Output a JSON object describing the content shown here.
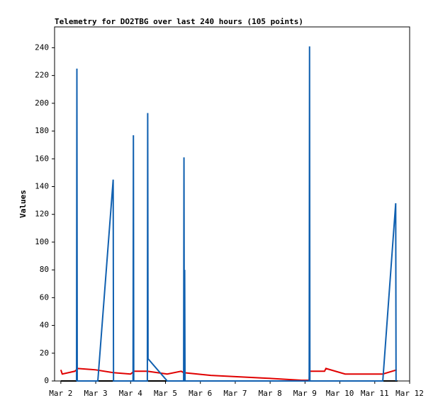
{
  "chart_data": {
    "type": "line",
    "title": "Telemetry for DO2TBG over last 240 hours (105 points)",
    "y_label": "Values",
    "xlim": [
      1.82,
      12
    ],
    "ylim": [
      0,
      255
    ],
    "xticks": [
      {
        "value": 2,
        "label": "Mar 2"
      },
      {
        "value": 3,
        "label": "Mar 3"
      },
      {
        "value": 4,
        "label": "Mar 4"
      },
      {
        "value": 5,
        "label": "Mar 5"
      },
      {
        "value": 6,
        "label": "Mar 6"
      },
      {
        "value": 7,
        "label": "Mar 7"
      },
      {
        "value": 8,
        "label": "Mar 8"
      },
      {
        "value": 9,
        "label": "Mar 9"
      },
      {
        "value": 10,
        "label": "Mar 10"
      },
      {
        "value": 11,
        "label": "Mar 11"
      },
      {
        "value": 12,
        "label": "Mar 12"
      }
    ],
    "yticks": [
      0,
      20,
      40,
      60,
      80,
      100,
      120,
      140,
      160,
      180,
      200,
      220,
      240
    ],
    "series": [
      {
        "color": "#000000",
        "x": [
          2.0,
          11.65
        ],
        "values": [
          0,
          0
        ]
      },
      {
        "color": "#e00000",
        "x": [
          2.0,
          2.04,
          2.4,
          2.49,
          3.0,
          3.5,
          4.0,
          4.1,
          4.48,
          5.05,
          5.45,
          5.52,
          6.3,
          7.9,
          8.9,
          9.12,
          9.13,
          9.56,
          9.6,
          10.15,
          11.23,
          11.63
        ],
        "values": [
          8,
          5,
          7,
          9,
          8,
          6,
          5,
          7,
          7,
          5,
          7,
          6,
          4,
          2,
          0.5,
          0.5,
          7,
          7,
          9,
          5,
          5,
          8
        ]
      },
      {
        "color": "#1060b0",
        "x": [
          2.45,
          2.46,
          2.47,
          3.06,
          3.5,
          3.51,
          4.07,
          4.08,
          4.09,
          4.48,
          4.49,
          4.5,
          5.05,
          5.52,
          5.53,
          5.54,
          5.55,
          5.56,
          9.12,
          9.13,
          9.14,
          11.23,
          11.6,
          11.61
        ],
        "values": [
          0,
          225,
          0,
          0,
          145,
          0,
          0,
          177,
          0,
          0,
          193,
          16,
          0,
          0,
          161,
          0,
          80,
          0,
          0,
          241,
          0,
          0,
          128,
          0
        ]
      }
    ]
  }
}
